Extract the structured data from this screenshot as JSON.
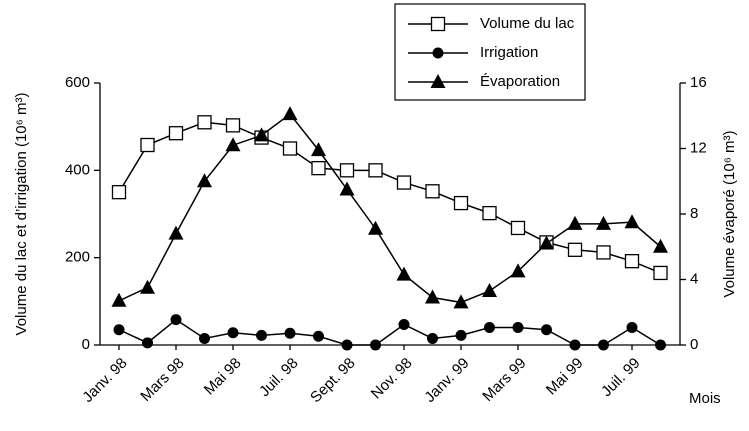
{
  "chart_data": {
    "type": "line",
    "categories": [
      "Janv. 98",
      null,
      "Mars 98",
      null,
      "Mai 98",
      null,
      "Juil. 98",
      null,
      "Sept. 98",
      null,
      "Nov. 98",
      null,
      "Janv. 99",
      null,
      "Mars 99",
      null,
      "Mai 99",
      null,
      "Juil. 99",
      null
    ],
    "series": [
      {
        "name": "Volume du lac",
        "color": "#000000",
        "marker": "square",
        "values": [
          350,
          458,
          485,
          510,
          503,
          475,
          450,
          405,
          400,
          400,
          372,
          352,
          325,
          302,
          268,
          235,
          218,
          212,
          192,
          165
        ]
      },
      {
        "name": "Irrigation",
        "color": "#000000",
        "marker": "circle",
        "values": [
          35,
          5,
          58,
          15,
          28,
          22,
          27,
          20,
          0,
          0,
          47,
          15,
          22,
          40,
          40,
          35,
          0,
          0,
          40,
          0
        ]
      },
      {
        "name": "Évaporation",
        "color": "#000000",
        "marker": "triangle",
        "axis": "y2",
        "values": [
          2.7,
          3.5,
          6.8,
          10,
          12.2,
          12.8,
          14.1,
          11.9,
          9.5,
          7.1,
          4.3,
          2.9,
          2.6,
          3.3,
          4.5,
          6.2,
          7.4,
          7.4,
          7.5,
          6.0
        ]
      }
    ],
    "ylabel": "Volume du lac et d’irrigation (10⁶ m³)",
    "y2label": "Volume évaporé (10⁶ m³)",
    "xlabel": "Mois",
    "ylim": [
      0,
      600
    ],
    "yticks": [
      0,
      200,
      400,
      600
    ],
    "y2lim": [
      0,
      16
    ],
    "y2ticks": [
      0,
      4,
      8,
      12,
      16
    ],
    "grid": false
  }
}
